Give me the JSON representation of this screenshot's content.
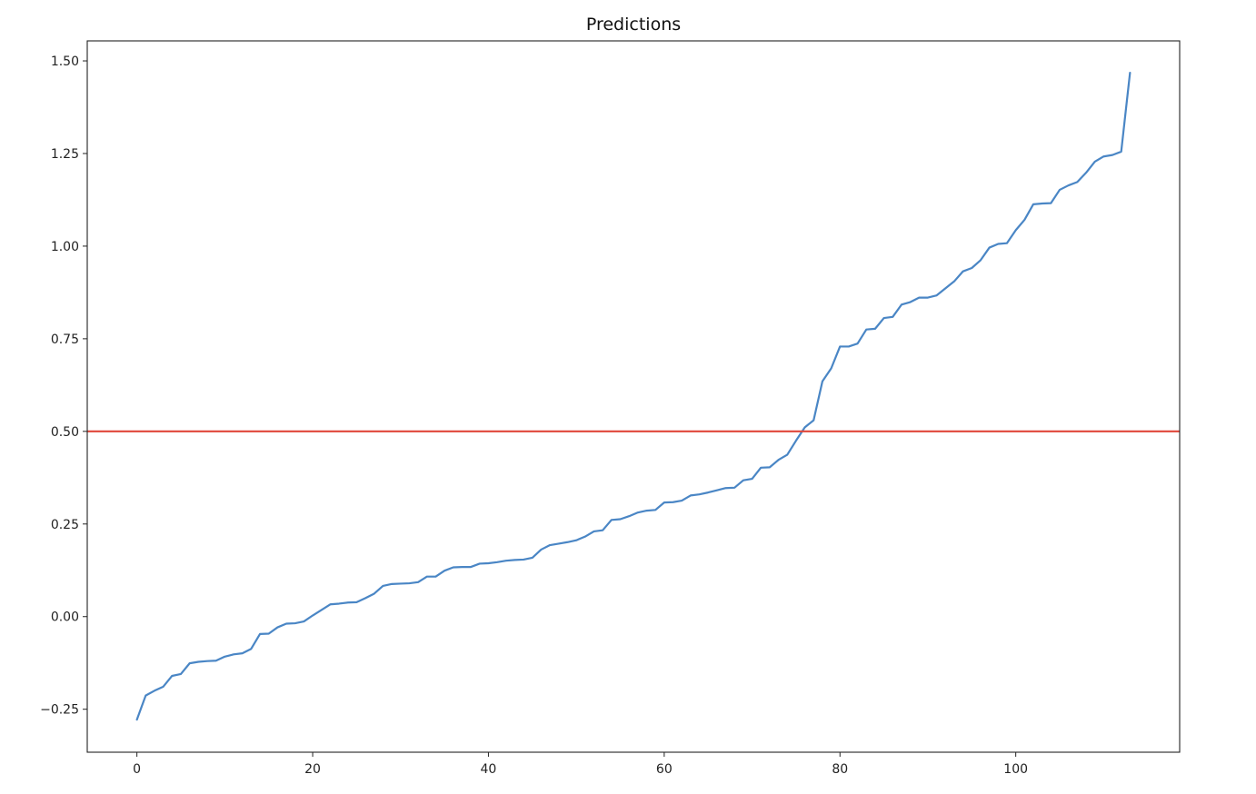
{
  "chart_data": {
    "type": "line",
    "title": "Predictions",
    "xlabel": "",
    "ylabel": "",
    "xlim": [
      -5.65,
      118.65
    ],
    "ylim": [
      -0.366,
      1.554
    ],
    "x_ticks": [
      0,
      20,
      40,
      60,
      80,
      100
    ],
    "x_tick_labels": [
      "0",
      "20",
      "40",
      "60",
      "80",
      "100"
    ],
    "y_ticks": [
      -0.25,
      0,
      0.25,
      0.5,
      0.75,
      1.0,
      1.25,
      1.5
    ],
    "y_tick_labels": [
      "−0.25",
      "0.00",
      "0.25",
      "0.50",
      "0.75",
      "1.00",
      "1.25",
      "1.50"
    ],
    "grid": false,
    "series": [
      {
        "color": "#4a86c5",
        "x_start": 0,
        "values": [
          -0.278,
          -0.213,
          -0.2,
          -0.189,
          -0.16,
          -0.155,
          -0.126,
          -0.122,
          -0.12,
          -0.119,
          -0.108,
          -0.102,
          -0.099,
          -0.087,
          -0.047,
          -0.046,
          -0.029,
          -0.019,
          -0.018,
          -0.013,
          0.003,
          0.018,
          0.033,
          0.035,
          0.038,
          0.039,
          0.05,
          0.062,
          0.083,
          0.088,
          0.089,
          0.09,
          0.093,
          0.108,
          0.108,
          0.124,
          0.133,
          0.134,
          0.134,
          0.143,
          0.144,
          0.147,
          0.151,
          0.153,
          0.154,
          0.159,
          0.181,
          0.193,
          0.197,
          0.201,
          0.206,
          0.216,
          0.23,
          0.233,
          0.261,
          0.263,
          0.271,
          0.281,
          0.286,
          0.288,
          0.308,
          0.309,
          0.313,
          0.327,
          0.33,
          0.335,
          0.341,
          0.347,
          0.348,
          0.368,
          0.372,
          0.402,
          0.403,
          0.423,
          0.437,
          0.475,
          0.511,
          0.53,
          0.635,
          0.67,
          0.729,
          0.729,
          0.737,
          0.775,
          0.777,
          0.806,
          0.809,
          0.842,
          0.849,
          0.861,
          0.861,
          0.867,
          0.886,
          0.905,
          0.932,
          0.941,
          0.962,
          0.996,
          1.006,
          1.008,
          1.043,
          1.071,
          1.113,
          1.115,
          1.116,
          1.152,
          1.164,
          1.173,
          1.198,
          1.228,
          1.242,
          1.246,
          1.255,
          1.468
        ]
      }
    ],
    "reference_line": {
      "orientation": "horizontal",
      "y": 0.5,
      "color": "#e0473a"
    }
  }
}
